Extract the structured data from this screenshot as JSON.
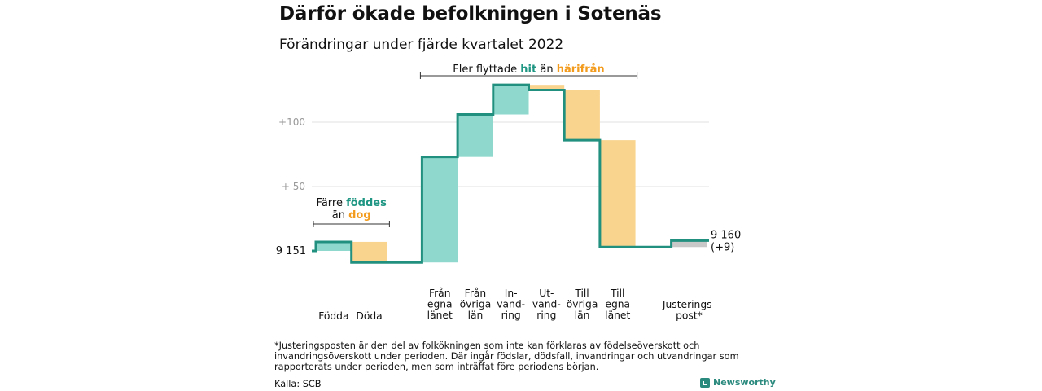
{
  "header": {
    "title": "Därför ökade befolkningen i Sotenäs",
    "subtitle": "Förändringar under fjärde kvartalet 2022"
  },
  "chart_data": {
    "type": "waterfall",
    "start_value": 9151,
    "end_label": [
      "9 160",
      "(+9)"
    ],
    "start_label": "9 151",
    "y_tick_labels": [
      "+100",
      "+ 50"
    ],
    "y_tick_values": [
      100,
      50
    ],
    "ylim": [
      -9,
      130
    ],
    "steps": [
      {
        "label": [
          "Födda"
        ],
        "delta": 7
      },
      {
        "label": [
          "Döda"
        ],
        "delta": -16
      },
      {
        "label": [
          "Från",
          "egna",
          "länet"
        ],
        "delta": 82
      },
      {
        "label": [
          "Från",
          "övriga",
          "län"
        ],
        "delta": 33
      },
      {
        "label": [
          "In-",
          "vand-",
          "ring"
        ],
        "delta": 23
      },
      {
        "label": [
          "Ut-",
          "vand-",
          "ring"
        ],
        "delta": -4
      },
      {
        "label": [
          "Till",
          "övriga",
          "län"
        ],
        "delta": -39
      },
      {
        "label": [
          "Till",
          "egna",
          "länet"
        ],
        "delta": -83
      },
      {
        "label": [
          "Justerings-",
          "post*"
        ],
        "delta": 5
      }
    ],
    "annotations": {
      "birth": {
        "line1": "Färre",
        "word1": "föddes",
        "line2": "än",
        "word2": "dog"
      },
      "migration": {
        "t1": "Fler flyttade",
        "w1": "hit",
        "t2": "än",
        "w2": "härifrån"
      }
    },
    "colors": {
      "increase": "#8ed8cd",
      "decrease": "#f9d48f",
      "adjustment": "#c8c8c8",
      "line": "#22907f",
      "grid": "#e2e2e2",
      "tick": "#999999",
      "teal_text": "#1e9683",
      "orange_text": "#f29b1c"
    }
  },
  "footnote": "*Justeringsposten är den del av folkökningen som inte kan förklaras av födelseöverskott och invandringsöverskott under perioden. Där ingår födslar, dödsfall, invandringar och utvandringar som rapporterats under perioden, men som inträffat före periodens början.",
  "source": "Källa: SCB",
  "brand": {
    "name": "Newsworthy",
    "icon": "chart-logo-icon"
  }
}
